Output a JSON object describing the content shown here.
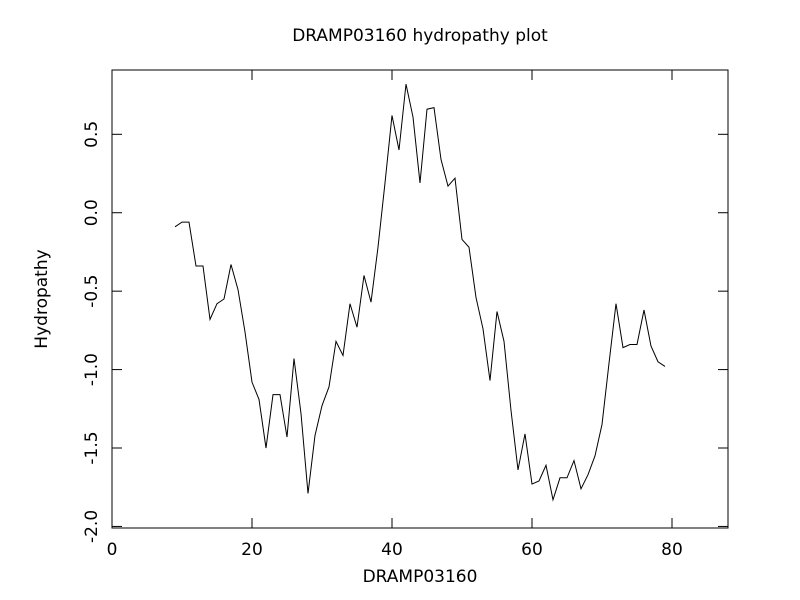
{
  "chart_data": {
    "type": "line",
    "title": "DRAMP03160 hydropathy plot",
    "x_label": "DRAMP03160",
    "y_label": "Hydropathy",
    "xlim": [
      0,
      88
    ],
    "xticks": [
      0,
      20,
      40,
      60,
      80
    ],
    "ylim": [
      -2.01,
      0.91
    ],
    "yticks": [
      {
        "value": -2,
        "label": "-2.0"
      },
      -1.5,
      {
        "value": -1,
        "label": "-1.0"
      },
      -0.5,
      {
        "value": 0,
        "label": "0.0"
      },
      0.5
    ],
    "x": [
      9,
      10,
      11,
      12,
      13,
      14,
      15,
      16,
      17,
      18,
      19,
      20,
      21,
      22,
      23,
      24,
      25,
      26,
      27,
      28,
      29,
      30,
      31,
      32,
      33,
      34,
      35,
      36,
      37,
      38,
      39,
      40,
      41,
      42,
      43,
      44,
      45,
      46,
      47,
      48,
      49,
      50,
      51,
      52,
      53,
      54,
      55,
      56,
      57,
      58,
      59,
      60,
      61,
      62,
      63,
      64,
      65,
      66,
      67,
      68,
      69,
      70,
      71,
      72,
      73,
      74,
      75,
      76,
      77,
      78,
      79
    ],
    "series": [
      {
        "name": "Hydropathy",
        "color": "#000000",
        "values": [
          -0.09,
          -0.06,
          -0.06,
          -0.34,
          -0.34,
          -0.68,
          -0.58,
          -0.55,
          -0.33,
          -0.49,
          -0.76,
          -1.08,
          -1.19,
          -1.5,
          -1.16,
          -1.16,
          -1.43,
          -0.93,
          -1.28,
          -1.79,
          -1.42,
          -1.23,
          -1.11,
          -0.82,
          -0.91,
          -0.58,
          -0.73,
          -0.4,
          -0.57,
          -0.22,
          0.19,
          0.62,
          0.4,
          0.82,
          0.61,
          0.19,
          0.66,
          0.67,
          0.34,
          0.17,
          0.22,
          -0.17,
          -0.22,
          -0.54,
          -0.74,
          -1.07,
          -0.63,
          -0.82,
          -1.26,
          -1.64,
          -1.41,
          -1.73,
          -1.71,
          -1.61,
          -1.83,
          -1.69,
          -1.69,
          -1.58,
          -1.76,
          -1.67,
          -1.55,
          -1.35,
          -0.96,
          -0.58,
          -0.86,
          -0.84,
          -0.84,
          -0.62,
          -0.85,
          -0.95,
          -0.98
        ]
      }
    ]
  }
}
